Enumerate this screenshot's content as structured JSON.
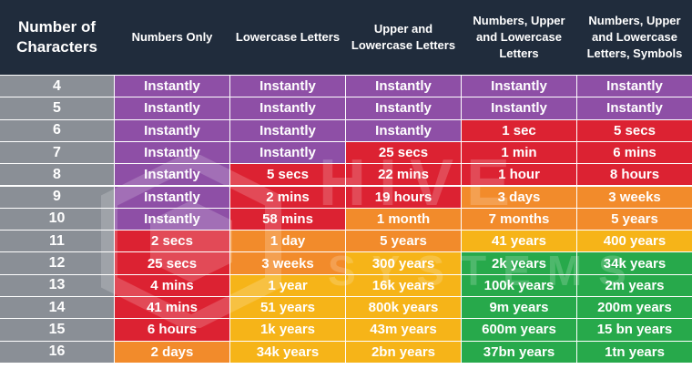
{
  "headers": [
    "Number of Characters",
    "Numbers Only",
    "Lowercase Letters",
    "Upper and Lowercase Letters",
    "Numbers, Upper and Lowercase Letters",
    "Numbers, Upper and Lowercase Letters, Symbols"
  ],
  "colors": {
    "header": "#202c3c",
    "row_label": "#8a8f96",
    "purple": "#8e4fa6",
    "red": "#dc2232",
    "orange": "#f28b2b",
    "yellow": "#f6b418",
    "green": "#27a94b"
  },
  "watermark": {
    "text1": "HIVE",
    "text2": "SYSTEMS"
  },
  "rows": [
    {
      "n": "4",
      "cells": [
        [
          "Instantly",
          "purple"
        ],
        [
          "Instantly",
          "purple"
        ],
        [
          "Instantly",
          "purple"
        ],
        [
          "Instantly",
          "purple"
        ],
        [
          "Instantly",
          "purple"
        ]
      ]
    },
    {
      "n": "5",
      "cells": [
        [
          "Instantly",
          "purple"
        ],
        [
          "Instantly",
          "purple"
        ],
        [
          "Instantly",
          "purple"
        ],
        [
          "Instantly",
          "purple"
        ],
        [
          "Instantly",
          "purple"
        ]
      ]
    },
    {
      "n": "6",
      "cells": [
        [
          "Instantly",
          "purple"
        ],
        [
          "Instantly",
          "purple"
        ],
        [
          "Instantly",
          "purple"
        ],
        [
          "1 sec",
          "red"
        ],
        [
          "5 secs",
          "red"
        ]
      ]
    },
    {
      "n": "7",
      "cells": [
        [
          "Instantly",
          "purple"
        ],
        [
          "Instantly",
          "purple"
        ],
        [
          "25 secs",
          "red"
        ],
        [
          "1 min",
          "red"
        ],
        [
          "6 mins",
          "red"
        ]
      ]
    },
    {
      "n": "8",
      "cells": [
        [
          "Instantly",
          "purple"
        ],
        [
          "5 secs",
          "red"
        ],
        [
          "22 mins",
          "red"
        ],
        [
          "1 hour",
          "red"
        ],
        [
          "8 hours",
          "red"
        ]
      ]
    },
    {
      "n": "9",
      "cells": [
        [
          "Instantly",
          "purple"
        ],
        [
          "2 mins",
          "red"
        ],
        [
          "19 hours",
          "red"
        ],
        [
          "3 days",
          "orange"
        ],
        [
          "3 weeks",
          "orange"
        ]
      ]
    },
    {
      "n": "10",
      "cells": [
        [
          "Instantly",
          "purple"
        ],
        [
          "58 mins",
          "red"
        ],
        [
          "1 month",
          "orange"
        ],
        [
          "7 months",
          "orange"
        ],
        [
          "5 years",
          "orange"
        ]
      ]
    },
    {
      "n": "11",
      "cells": [
        [
          "2 secs",
          "red"
        ],
        [
          "1 day",
          "orange"
        ],
        [
          "5 years",
          "orange"
        ],
        [
          "41 years",
          "yellow"
        ],
        [
          "400 years",
          "yellow"
        ]
      ]
    },
    {
      "n": "12",
      "cells": [
        [
          "25 secs",
          "red"
        ],
        [
          "3 weeks",
          "orange"
        ],
        [
          "300 years",
          "yellow"
        ],
        [
          "2k years",
          "green"
        ],
        [
          "34k years",
          "green"
        ]
      ]
    },
    {
      "n": "13",
      "cells": [
        [
          "4 mins",
          "red"
        ],
        [
          "1 year",
          "yellow"
        ],
        [
          "16k years",
          "yellow"
        ],
        [
          "100k years",
          "green"
        ],
        [
          "2m years",
          "green"
        ]
      ]
    },
    {
      "n": "14",
      "cells": [
        [
          "41 mins",
          "red"
        ],
        [
          "51 years",
          "yellow"
        ],
        [
          "800k years",
          "yellow"
        ],
        [
          "9m years",
          "green"
        ],
        [
          "200m years",
          "green"
        ]
      ]
    },
    {
      "n": "15",
      "cells": [
        [
          "6 hours",
          "red"
        ],
        [
          "1k years",
          "yellow"
        ],
        [
          "43m years",
          "yellow"
        ],
        [
          "600m years",
          "green"
        ],
        [
          "15 bn years",
          "green"
        ]
      ]
    },
    {
      "n": "16",
      "cells": [
        [
          "2 days",
          "orange"
        ],
        [
          "34k years",
          "yellow"
        ],
        [
          "2bn years",
          "yellow"
        ],
        [
          "37bn years",
          "green"
        ],
        [
          "1tn years",
          "green"
        ]
      ]
    }
  ]
}
